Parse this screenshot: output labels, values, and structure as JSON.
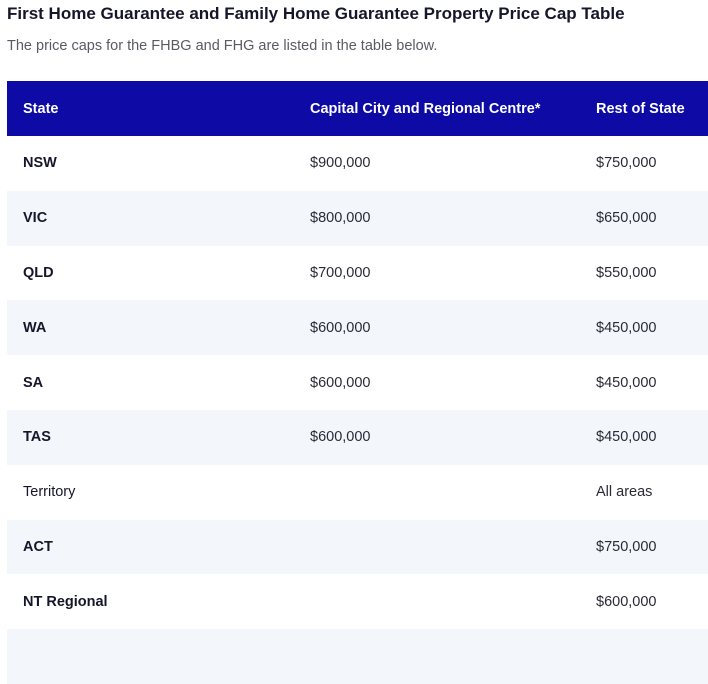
{
  "page": {
    "title": "First Home Guarantee and Family Home Guarantee Property Price Cap Table",
    "subtitle": "The price caps for the FHBG and FHG are listed in the table below."
  },
  "table": {
    "headers": [
      "State",
      "Capital City and Regional Centre*",
      "Rest of State"
    ],
    "rows": [
      [
        "NSW",
        "$900,000",
        "$750,000"
      ],
      [
        "VIC",
        "$800,000",
        "$650,000"
      ],
      [
        "QLD",
        "$700,000",
        "$550,000"
      ],
      [
        "WA",
        "$600,000",
        "$450,000"
      ],
      [
        "SA",
        "$600,000",
        "$450,000"
      ],
      [
        "TAS",
        "$600,000",
        "$450,000"
      ],
      [
        "Territory",
        "",
        "All areas"
      ],
      [
        "ACT",
        "",
        "$750,000"
      ],
      [
        "NT Regional",
        "",
        "$600,000"
      ]
    ]
  },
  "colors": {
    "header_bg": "#0d0aa6",
    "header_text": "#ffffff",
    "alt_row_bg": "#f3f6fb"
  }
}
